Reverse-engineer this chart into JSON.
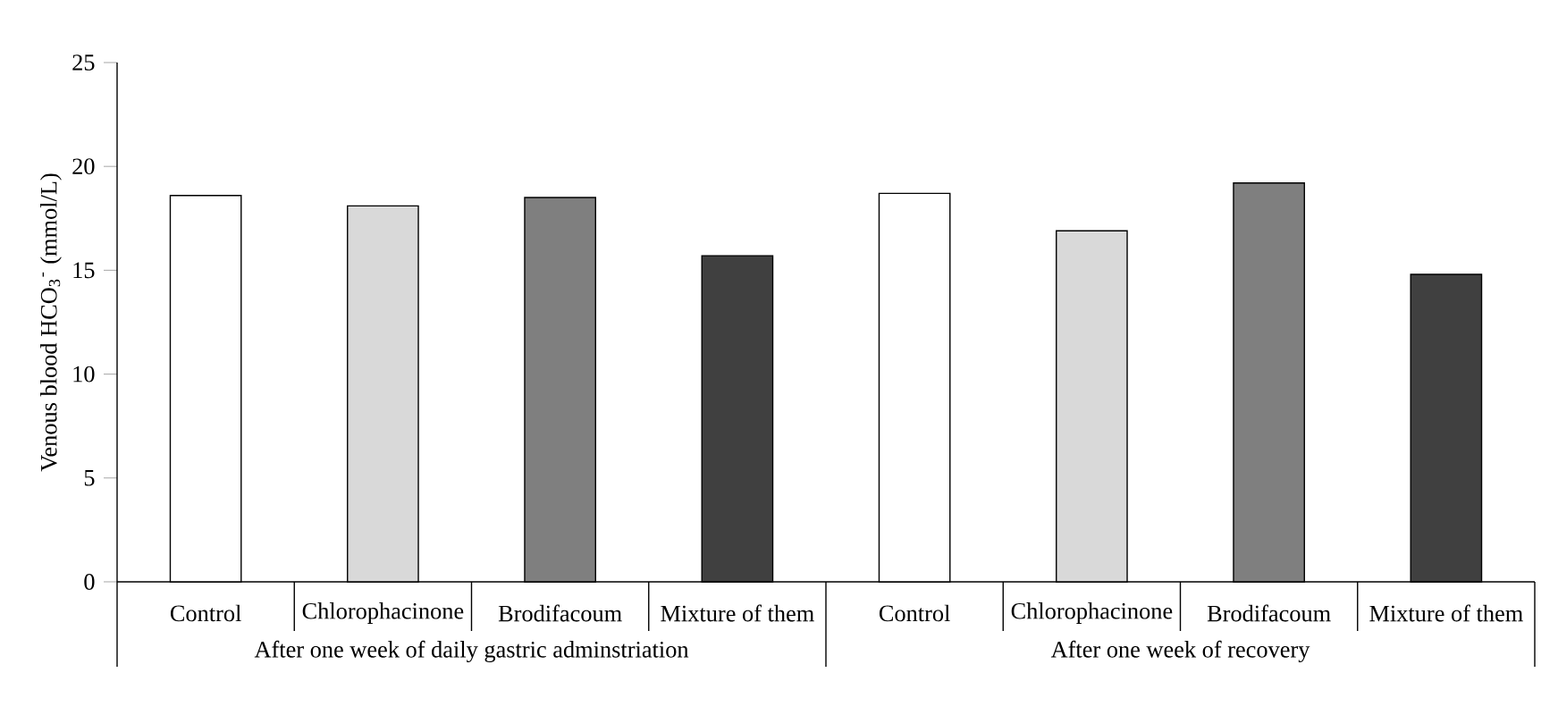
{
  "chart_data": {
    "type": "bar",
    "ylabel": "Venous blood HCO$_{3}$$^{-}$ (mmol/L)",
    "categories": [
      "Control",
      "Chlorophacinone",
      "Brodifacoum",
      "Mixture of them",
      "Control",
      "Chlorophacinone",
      "Brodifacoum",
      "Mixture of them"
    ],
    "values": [
      18.6,
      18.1,
      18.5,
      15.7,
      18.7,
      16.9,
      19.2,
      14.8
    ],
    "colors": [
      "#ffffff",
      "#d9d9d9",
      "#7f7f7f",
      "#404040",
      "#ffffff",
      "#d9d9d9",
      "#7f7f7f",
      "#404040"
    ],
    "ylim": [
      0,
      25
    ],
    "yticks": [
      0,
      5,
      10,
      15,
      20,
      25
    ],
    "annotations": [
      "After one week of daily gastric adminstriation",
      "After one week of recovery"
    ],
    "grid": false
  }
}
